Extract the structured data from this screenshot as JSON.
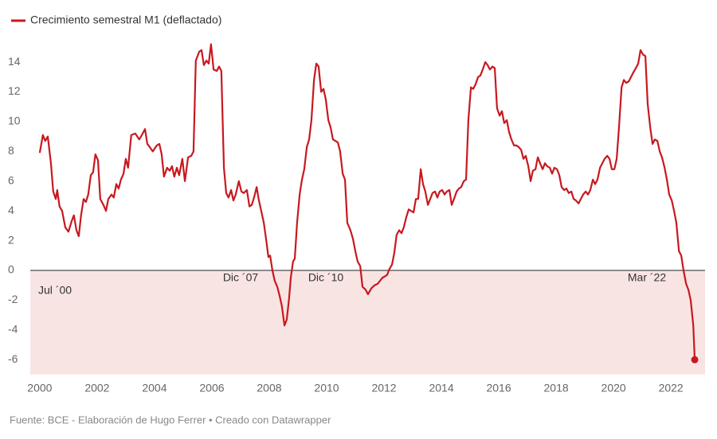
{
  "chart_data": {
    "type": "line",
    "series": [
      {
        "name": "Crecimiento semestral M1 (deflactado)",
        "color": "#c8181f",
        "x": [
          2000.0,
          2000.11,
          2000.19,
          2000.28,
          2000.39,
          2000.47,
          2000.56,
          2000.61,
          2000.69,
          2000.78,
          2000.89,
          2001.0,
          2001.11,
          2001.19,
          2001.28,
          2001.36,
          2001.44,
          2001.53,
          2001.61,
          2001.69,
          2001.78,
          2001.86,
          2001.94,
          2002.03,
          2002.11,
          2002.22,
          2002.31,
          2002.39,
          2002.5,
          2002.58,
          2002.67,
          2002.75,
          2002.83,
          2002.92,
          2003.0,
          2003.08,
          2003.19,
          2003.33,
          2003.47,
          2003.56,
          2003.67,
          2003.75,
          2003.83,
          2003.94,
          2004.08,
          2004.17,
          2004.25,
          2004.33,
          2004.44,
          2004.53,
          2004.61,
          2004.69,
          2004.78,
          2004.86,
          2004.97,
          2005.06,
          2005.17,
          2005.28,
          2005.36,
          2005.44,
          2005.56,
          2005.64,
          2005.72,
          2005.81,
          2005.89,
          2005.97,
          2006.06,
          2006.17,
          2006.25,
          2006.33,
          2006.42,
          2006.5,
          2006.58,
          2006.67,
          2006.75,
          2006.83,
          2006.94,
          2007.03,
          2007.11,
          2007.22,
          2007.31,
          2007.39,
          2007.47,
          2007.56,
          2007.64,
          2007.72,
          2007.81,
          2007.89,
          2007.97,
          2008.03,
          2008.11,
          2008.19,
          2008.28,
          2008.36,
          2008.44,
          2008.53,
          2008.61,
          2008.69,
          2008.75,
          2008.83,
          2008.89,
          2008.97,
          2009.06,
          2009.14,
          2009.22,
          2009.31,
          2009.39,
          2009.47,
          2009.56,
          2009.64,
          2009.72,
          2009.81,
          2009.89,
          2009.97,
          2010.06,
          2010.14,
          2010.22,
          2010.31,
          2010.39,
          2010.47,
          2010.56,
          2010.64,
          2010.72,
          2010.83,
          2010.92,
          2011.0,
          2011.08,
          2011.17,
          2011.25,
          2011.36,
          2011.44,
          2011.56,
          2011.67,
          2011.78,
          2011.86,
          2011.94,
          2012.03,
          2012.11,
          2012.19,
          2012.28,
          2012.36,
          2012.44,
          2012.53,
          2012.61,
          2012.69,
          2012.78,
          2012.86,
          2012.94,
          2013.03,
          2013.11,
          2013.19,
          2013.28,
          2013.36,
          2013.44,
          2013.53,
          2013.61,
          2013.69,
          2013.78,
          2013.86,
          2013.94,
          2014.03,
          2014.11,
          2014.19,
          2014.28,
          2014.36,
          2014.44,
          2014.53,
          2014.61,
          2014.69,
          2014.78,
          2014.86,
          2014.94,
          2015.03,
          2015.11,
          2015.19,
          2015.28,
          2015.36,
          2015.44,
          2015.53,
          2015.61,
          2015.69,
          2015.78,
          2015.86,
          2015.94,
          2016.03,
          2016.11,
          2016.19,
          2016.28,
          2016.36,
          2016.44,
          2016.53,
          2016.61,
          2016.69,
          2016.78,
          2016.86,
          2016.94,
          2017.03,
          2017.11,
          2017.19,
          2017.28,
          2017.36,
          2017.44,
          2017.53,
          2017.61,
          2017.69,
          2017.78,
          2017.86,
          2017.94,
          2018.03,
          2018.11,
          2018.19,
          2018.28,
          2018.36,
          2018.44,
          2018.53,
          2018.61,
          2018.69,
          2018.78,
          2018.86,
          2018.94,
          2019.03,
          2019.11,
          2019.19,
          2019.28,
          2019.36,
          2019.44,
          2019.53,
          2019.61,
          2019.69,
          2019.78,
          2019.86,
          2019.94,
          2020.03,
          2020.11,
          2020.19,
          2020.28,
          2020.36,
          2020.44,
          2020.53,
          2020.61,
          2020.69,
          2020.78,
          2020.86,
          2020.94,
          2021.03,
          2021.11,
          2021.19,
          2021.28,
          2021.36,
          2021.44,
          2021.53,
          2021.61,
          2021.69,
          2021.78,
          2021.86,
          2021.94,
          2022.03,
          2022.11,
          2022.19,
          2022.28,
          2022.36,
          2022.44,
          2022.53,
          2022.61,
          2022.69,
          2022.78,
          2022.83
        ],
        "values": [
          7.9,
          9.1,
          8.7,
          9.0,
          7.2,
          5.3,
          4.8,
          5.4,
          4.3,
          4.0,
          2.9,
          2.6,
          3.3,
          3.7,
          2.7,
          2.3,
          3.7,
          4.8,
          4.6,
          5.1,
          6.4,
          6.6,
          7.8,
          7.4,
          4.8,
          4.4,
          4.0,
          4.8,
          5.1,
          4.9,
          5.8,
          5.5,
          6.1,
          6.5,
          7.5,
          6.9,
          9.1,
          9.2,
          8.8,
          9.1,
          9.5,
          8.5,
          8.3,
          8.0,
          8.4,
          8.5,
          7.8,
          6.3,
          6.9,
          6.7,
          7.0,
          6.3,
          6.9,
          6.4,
          7.5,
          6.0,
          7.6,
          7.7,
          8.0,
          14.1,
          14.7,
          14.8,
          13.8,
          14.1,
          13.9,
          15.2,
          13.5,
          13.4,
          13.7,
          13.4,
          6.9,
          5.2,
          4.9,
          5.4,
          4.7,
          5.1,
          6.0,
          5.3,
          5.2,
          5.4,
          4.3,
          4.4,
          4.9,
          5.6,
          4.7,
          4.0,
          3.2,
          2.1,
          0.9,
          1.0,
          0.0,
          -0.7,
          -1.1,
          -1.7,
          -2.4,
          -3.7,
          -3.3,
          -1.9,
          -0.5,
          0.6,
          0.8,
          3.2,
          5.1,
          6.1,
          6.8,
          8.3,
          8.8,
          10.1,
          12.8,
          13.9,
          13.7,
          12.0,
          12.2,
          11.5,
          10.1,
          9.6,
          8.8,
          8.7,
          8.6,
          8.0,
          6.5,
          6.1,
          3.2,
          2.7,
          2.1,
          1.3,
          0.6,
          0.3,
          -1.1,
          -1.3,
          -1.6,
          -1.2,
          -1.0,
          -0.9,
          -0.7,
          -0.5,
          -0.4,
          -0.3,
          0.1,
          0.4,
          1.2,
          2.4,
          2.7,
          2.5,
          2.9,
          3.6,
          4.1,
          4.0,
          3.9,
          4.8,
          4.8,
          6.8,
          5.8,
          5.3,
          4.4,
          4.8,
          5.2,
          5.3,
          4.9,
          5.3,
          5.4,
          5.1,
          5.3,
          5.4,
          4.4,
          4.8,
          5.3,
          5.5,
          5.6,
          6.0,
          6.1,
          10.1,
          12.3,
          12.2,
          12.5,
          13.0,
          13.1,
          13.5,
          14.0,
          13.8,
          13.5,
          13.7,
          13.6,
          10.9,
          10.4,
          10.7,
          9.9,
          10.1,
          9.3,
          8.8,
          8.4,
          8.4,
          8.3,
          8.1,
          7.5,
          7.7,
          7.0,
          6.0,
          6.7,
          6.8,
          7.6,
          7.2,
          6.8,
          7.2,
          7.0,
          6.9,
          6.5,
          6.9,
          6.8,
          6.4,
          5.6,
          5.4,
          5.5,
          5.2,
          5.3,
          4.8,
          4.7,
          4.5,
          4.8,
          5.1,
          5.3,
          5.1,
          5.4,
          6.1,
          5.8,
          6.1,
          6.9,
          7.2,
          7.5,
          7.7,
          7.5,
          6.8,
          6.8,
          7.5,
          9.6,
          12.3,
          12.8,
          12.6,
          12.7,
          13.0,
          13.3,
          13.6,
          13.9,
          14.8,
          14.5,
          14.4,
          11.2,
          9.6,
          8.5,
          8.8,
          8.7,
          8.0,
          7.6,
          6.9,
          6.1,
          5.1,
          4.7,
          4.0,
          3.2,
          1.3,
          1.0,
          0.0,
          -0.9,
          -1.3,
          -2.0,
          -3.7,
          -6.0
        ]
      }
    ],
    "annotations": [
      "Jul ´00",
      "Dic ´07",
      "Dic ´10",
      "Mar ´22"
    ],
    "xlim": [
      1999.67,
      2023.19
    ],
    "xticks": [
      2000,
      2002,
      2004,
      2006,
      2008,
      2010,
      2012,
      2014,
      2016,
      2018,
      2020,
      2022
    ],
    "ylim": [
      -7,
      15.5
    ],
    "yticks": [
      -6,
      -4,
      -2,
      0,
      2,
      4,
      6,
      8,
      10,
      12,
      14
    ],
    "grid": false,
    "negative_fill": "#f9e4e4",
    "source": "Fuente: BCE - Elaboración de Hugo Ferrer • Creado con Datawrapper"
  }
}
